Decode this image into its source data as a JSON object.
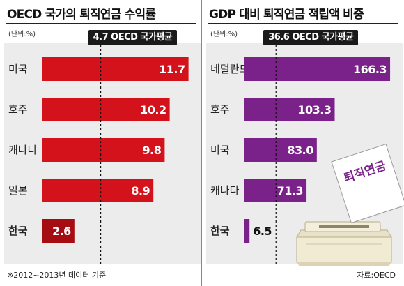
{
  "left": {
    "title": "OECD 국가의 퇴직연금 수익률",
    "unit": "(단위:%)",
    "average_label": "4.7 OECD 국가평균",
    "footnote": "※2012~2013년 데이터 기준",
    "chart_data": {
      "type": "bar",
      "orientation": "horizontal",
      "title": "OECD 국가의 퇴직연금 수익률",
      "unit": "%",
      "categories": [
        "미국",
        "호주",
        "캐나다",
        "일본",
        "한국"
      ],
      "values": [
        11.7,
        10.2,
        9.8,
        8.9,
        2.6
      ],
      "value_labels": [
        "11.7",
        "10.2",
        "9.8",
        "8.9",
        "2.6"
      ],
      "reference_line": {
        "label": "OECD 국가평균",
        "value": 4.7
      },
      "xlim": [
        0,
        12
      ],
      "highlight_category": "한국",
      "colors": {
        "bar": "#d3121b",
        "highlight": "#a50d12"
      }
    }
  },
  "right": {
    "title": "GDP 대비 퇴직연금 적립액 비중",
    "unit": "(단위:%)",
    "average_label": "36.6 OECD 국가평균",
    "source": "자료:OECD",
    "illustration_text": "퇴직연금",
    "chart_data": {
      "type": "bar",
      "orientation": "horizontal",
      "title": "GDP 대비 퇴직연금 적립액 비중",
      "unit": "%",
      "categories": [
        "네덜란드",
        "호주",
        "미국",
        "캐나다",
        "한국"
      ],
      "values": [
        166.3,
        103.3,
        83.0,
        71.3,
        6.5
      ],
      "value_labels": [
        "166.3",
        "103.3",
        "83.0",
        "71.3",
        "6.5"
      ],
      "reference_line": {
        "label": "OECD 국가평균",
        "value": 36.6
      },
      "xlim": [
        0,
        171
      ],
      "highlight_category": "한국",
      "colors": {
        "bar": "#7a2289",
        "highlight": "#7a2289"
      }
    }
  }
}
